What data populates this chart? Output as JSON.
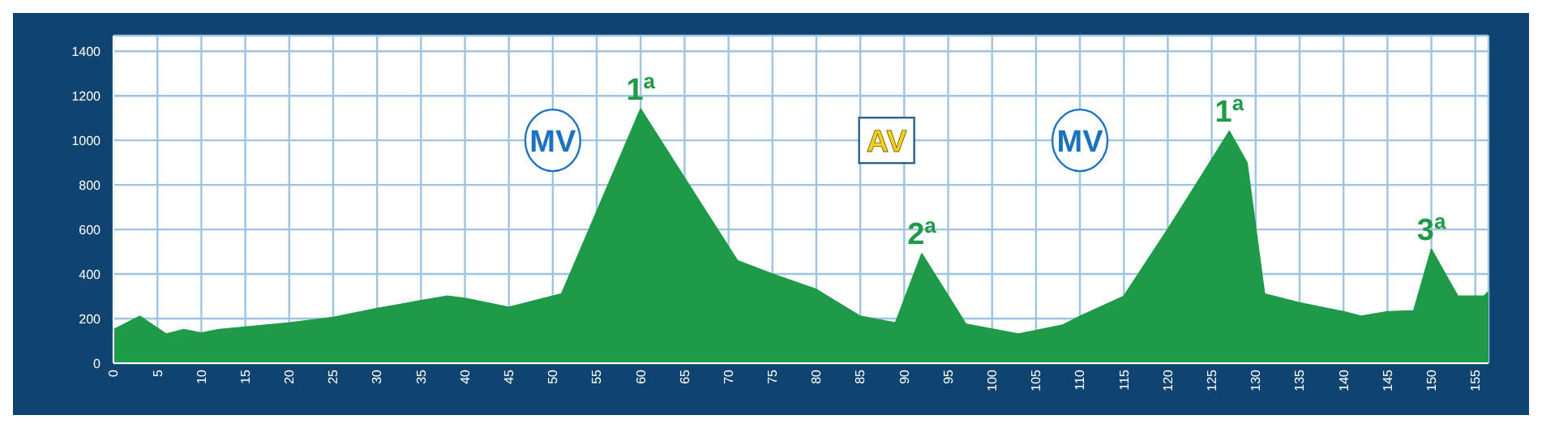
{
  "chart_data": {
    "type": "area",
    "color": "#1e9a48",
    "x": [
      0,
      3,
      6,
      8,
      10,
      12,
      20,
      25,
      30,
      35,
      38,
      40,
      45,
      51,
      60,
      65,
      71,
      75,
      80,
      85,
      89,
      92,
      97,
      103,
      108,
      110,
      115,
      120,
      124,
      127,
      129,
      131,
      135,
      140,
      142,
      145,
      148,
      150,
      153,
      156,
      156.5
    ],
    "values": [
      150,
      210,
      130,
      150,
      135,
      150,
      180,
      205,
      245,
      280,
      300,
      290,
      250,
      310,
      1140,
      830,
      460,
      400,
      330,
      210,
      180,
      490,
      175,
      130,
      170,
      210,
      300,
      600,
      850,
      1040,
      900,
      310,
      270,
      230,
      210,
      230,
      235,
      510,
      300,
      300,
      320
    ],
    "xlim": [
      0,
      156.5
    ],
    "xticks": [
      0,
      5,
      10,
      15,
      20,
      25,
      30,
      35,
      40,
      45,
      50,
      55,
      60,
      65,
      70,
      75,
      80,
      85,
      90,
      95,
      100,
      105,
      110,
      115,
      120,
      125,
      130,
      135,
      140,
      145,
      150,
      155
    ],
    "ylim": [
      0,
      1470
    ],
    "yticks": [
      0,
      200,
      400,
      600,
      800,
      1000,
      1200,
      1400
    ],
    "grid": true,
    "annotations": [
      {
        "text": "MV",
        "x": 50,
        "y": 1000
      },
      {
        "text": "1$^{a}$",
        "x": 60,
        "y": 1140
      },
      {
        "text": "AV",
        "x": 88,
        "y": 1000
      },
      {
        "text": "2$^{a}$",
        "x": 92,
        "y": 490
      },
      {
        "text": "MV",
        "x": 110,
        "y": 1000
      },
      {
        "text": "1$^{a}$",
        "x": 127,
        "y": 1040
      },
      {
        "text": "3$^{a}$",
        "x": 150,
        "y": 510
      }
    ]
  }
}
